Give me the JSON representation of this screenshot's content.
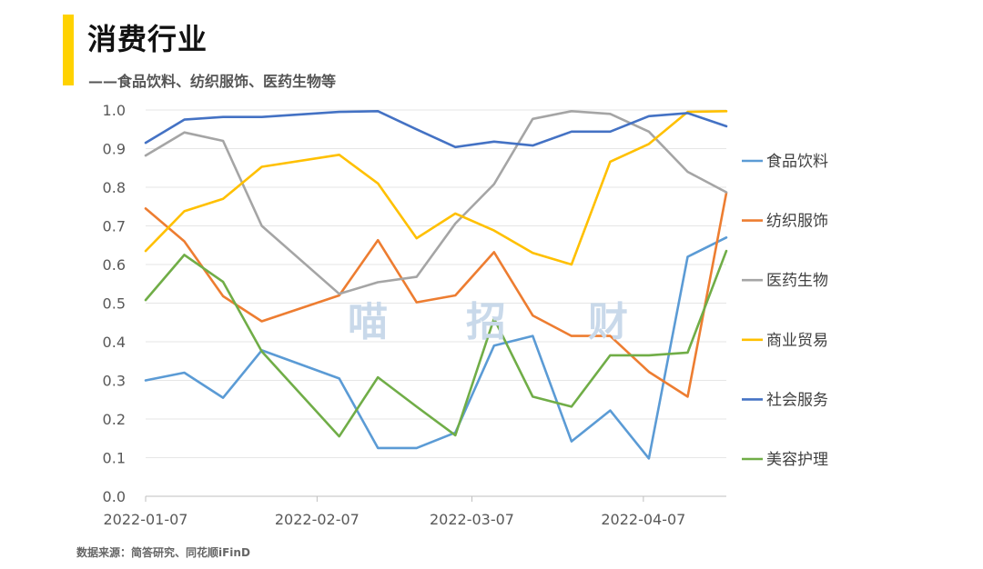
{
  "header": {
    "title": "消费行业",
    "subtitle": "——食品饮料、纺织服饰、医药生物等",
    "accent_color": "#FFD200"
  },
  "footer": {
    "source": "数据来源：简答研究、同花顺iFinD"
  },
  "watermark": [
    "喵",
    "招",
    "财"
  ],
  "chart_data": {
    "type": "line",
    "title": "",
    "xlabel": "",
    "ylabel": "",
    "ylim": [
      0,
      1.0
    ],
    "yticks": [
      "0.0",
      "0.1",
      "0.2",
      "0.3",
      "0.4",
      "0.5",
      "0.6",
      "0.7",
      "0.8",
      "0.9",
      "1.0"
    ],
    "xtick_labels": [
      "2022-01-07",
      "2022-02-07",
      "2022-03-07",
      "2022-04-07"
    ],
    "x": [
      "2022-01-07",
      "2022-01-14",
      "2022-01-21",
      "2022-01-28",
      "2022-02-11",
      "2022-02-18",
      "2022-02-25",
      "2022-03-04",
      "2022-03-11",
      "2022-03-18",
      "2022-03-25",
      "2022-04-01",
      "2022-04-08",
      "2022-04-15",
      "2022-04-22"
    ],
    "grid": true,
    "legend_position": "right",
    "series": [
      {
        "name": "食品饮料",
        "color": "#5B9BD5",
        "values": [
          0.3,
          0.32,
          0.255,
          0.378,
          0.305,
          0.125,
          0.125,
          0.165,
          0.39,
          0.415,
          0.142,
          0.222,
          0.098,
          0.62,
          0.67
        ]
      },
      {
        "name": "纺织服饰",
        "color": "#ED7D31",
        "values": [
          0.745,
          0.66,
          0.518,
          0.453,
          0.52,
          0.663,
          0.502,
          0.52,
          0.632,
          0.468,
          0.415,
          0.415,
          0.322,
          0.258,
          0.785
        ]
      },
      {
        "name": "医药生物",
        "color": "#A5A5A5",
        "values": [
          0.882,
          0.942,
          0.92,
          0.7,
          0.524,
          0.554,
          0.568,
          0.706,
          0.808,
          0.977,
          0.997,
          0.99,
          0.944,
          0.84,
          0.787
        ]
      },
      {
        "name": "商业贸易",
        "color": "#FFC000",
        "values": [
          0.635,
          0.738,
          0.77,
          0.853,
          0.884,
          0.81,
          0.668,
          0.732,
          0.688,
          0.63,
          0.6,
          0.866,
          0.912,
          0.995,
          0.997
        ]
      },
      {
        "name": "社会服务",
        "color": "#4472C4",
        "values": [
          0.915,
          0.975,
          0.982,
          0.982,
          0.995,
          0.997,
          0.95,
          0.904,
          0.918,
          0.908,
          0.944,
          0.944,
          0.984,
          0.992,
          0.958
        ]
      },
      {
        "name": "美容护理",
        "color": "#70AD47",
        "values": [
          0.508,
          0.625,
          0.555,
          0.375,
          0.155,
          0.308,
          0.232,
          0.158,
          0.46,
          0.258,
          0.232,
          0.365,
          0.365,
          0.372,
          0.635
        ]
      }
    ]
  }
}
